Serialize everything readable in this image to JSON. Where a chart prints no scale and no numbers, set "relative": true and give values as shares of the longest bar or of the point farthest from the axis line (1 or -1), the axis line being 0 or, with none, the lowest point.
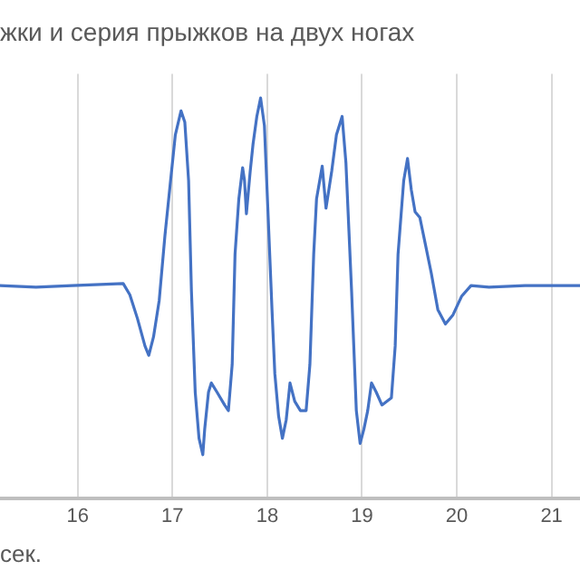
{
  "chart_data": {
    "type": "line",
    "title": "жки и серия прыжков на двух ногах",
    "xlabel": "сек.",
    "relative": true,
    "grid": "x",
    "legend": false,
    "marker": "none",
    "line_style": "solid",
    "xlim": [
      15.18,
      21.3
    ],
    "xticks": [
      16,
      17,
      18,
      19,
      20,
      21
    ],
    "x": [
      15.18,
      15.56,
      15.94,
      16.48,
      16.55,
      16.63,
      16.71,
      16.75,
      16.8,
      16.86,
      16.92,
      16.98,
      17.03,
      17.09,
      17.13,
      17.17,
      17.2,
      17.24,
      17.28,
      17.32,
      17.34,
      17.38,
      17.41,
      17.47,
      17.55,
      17.59,
      17.63,
      17.66,
      17.7,
      17.74,
      17.76,
      17.78,
      17.82,
      17.85,
      17.89,
      17.93,
      17.97,
      18.01,
      18.05,
      18.08,
      18.12,
      18.16,
      18.2,
      18.24,
      18.29,
      18.35,
      18.41,
      18.45,
      18.49,
      18.52,
      18.58,
      18.62,
      18.68,
      18.73,
      18.79,
      18.83,
      18.89,
      18.94,
      18.98,
      19.02,
      19.06,
      19.1,
      19.15,
      19.21,
      19.31,
      19.35,
      19.38,
      19.44,
      19.48,
      19.52,
      19.56,
      19.61,
      19.67,
      19.73,
      19.8,
      19.88,
      19.96,
      20.05,
      20.15,
      20.34,
      20.72,
      21.3
    ],
    "series": [
      {
        "color": "#4472c4",
        "values": [
          0.532,
          0.528,
          0.532,
          0.537,
          0.509,
          0.45,
          0.381,
          0.358,
          0.404,
          0.495,
          0.656,
          0.794,
          0.908,
          0.968,
          0.94,
          0.794,
          0.518,
          0.266,
          0.151,
          0.11,
          0.174,
          0.266,
          0.289,
          0.266,
          0.234,
          0.22,
          0.335,
          0.61,
          0.748,
          0.826,
          0.794,
          0.711,
          0.817,
          0.885,
          0.954,
          1.0,
          0.931,
          0.702,
          0.472,
          0.312,
          0.206,
          0.151,
          0.197,
          0.289,
          0.243,
          0.22,
          0.22,
          0.335,
          0.61,
          0.748,
          0.83,
          0.725,
          0.817,
          0.908,
          0.954,
          0.839,
          0.518,
          0.22,
          0.138,
          0.174,
          0.22,
          0.289,
          0.266,
          0.234,
          0.252,
          0.381,
          0.61,
          0.794,
          0.849,
          0.771,
          0.716,
          0.702,
          0.633,
          0.564,
          0.472,
          0.436,
          0.459,
          0.505,
          0.532,
          0.528,
          0.532,
          0.532
        ]
      }
    ]
  }
}
